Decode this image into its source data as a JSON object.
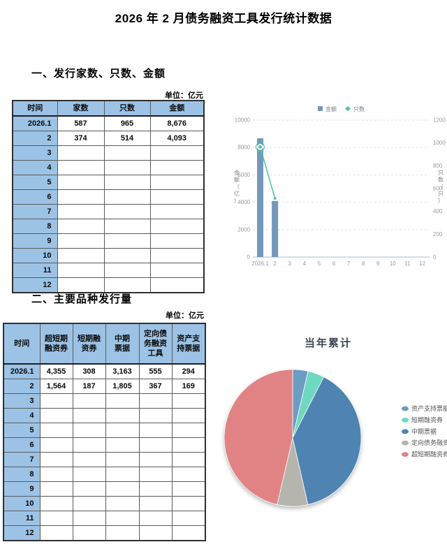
{
  "page_title": "2026 年 2 月债务融资工具发行统计数据",
  "section1": {
    "heading": "一、发行家数、只数、金额",
    "unit_label": "单位：亿元",
    "table": {
      "headers": [
        "时间",
        "家数",
        "只数",
        "金额"
      ],
      "rows": [
        [
          "2026.1",
          "587",
          "965",
          "8,676"
        ],
        [
          "2",
          "374",
          "514",
          "4,093"
        ],
        [
          "3",
          "",
          "",
          ""
        ],
        [
          "4",
          "",
          "",
          ""
        ],
        [
          "5",
          "",
          "",
          ""
        ],
        [
          "6",
          "",
          "",
          ""
        ],
        [
          "7",
          "",
          "",
          ""
        ],
        [
          "8",
          "",
          "",
          ""
        ],
        [
          "9",
          "",
          "",
          ""
        ],
        [
          "10",
          "",
          "",
          ""
        ],
        [
          "11",
          "",
          "",
          ""
        ],
        [
          "12",
          "",
          "",
          ""
        ]
      ]
    }
  },
  "section2": {
    "heading": "二、主要品种发行量",
    "unit_label": "单位：亿元",
    "table": {
      "headers": [
        "时间",
        "超短期\n融资券",
        "短期融\n资券",
        "中期\n票据",
        "定向债\n务融资\n工具",
        "资产支\n持票据"
      ],
      "rows": [
        [
          "2026.1",
          "4,355",
          "308",
          "3,163",
          "555",
          "294"
        ],
        [
          "2",
          "1,564",
          "187",
          "1,805",
          "367",
          "169"
        ],
        [
          "3",
          "",
          "",
          "",
          "",
          ""
        ],
        [
          "4",
          "",
          "",
          "",
          "",
          ""
        ],
        [
          "5",
          "",
          "",
          "",
          "",
          ""
        ],
        [
          "6",
          "",
          "",
          "",
          "",
          ""
        ],
        [
          "7",
          "",
          "",
          "",
          "",
          ""
        ],
        [
          "8",
          "",
          "",
          "",
          "",
          ""
        ],
        [
          "9",
          "",
          "",
          "",
          "",
          ""
        ],
        [
          "10",
          "",
          "",
          "",
          "",
          ""
        ],
        [
          "11",
          "",
          "",
          "",
          "",
          ""
        ],
        [
          "12",
          "",
          "",
          "",
          "",
          ""
        ]
      ]
    }
  },
  "chart_data": [
    {
      "type": "bar",
      "title": "",
      "categories": [
        "2026.1",
        "2",
        "3",
        "4",
        "5",
        "6",
        "7",
        "8",
        "9",
        "10",
        "11",
        "12"
      ],
      "series": [
        {
          "name": "金额",
          "type": "bar",
          "axis": "left",
          "color": "#7498b8",
          "values": [
            8676,
            4093,
            null,
            null,
            null,
            null,
            null,
            null,
            null,
            null,
            null,
            null
          ]
        },
        {
          "name": "只数",
          "type": "line",
          "axis": "right",
          "color": "#4ec3a2",
          "values": [
            965,
            514,
            null,
            null,
            null,
            null,
            null,
            null,
            null,
            null,
            null,
            null
          ]
        }
      ],
      "left_axis": {
        "name": "金额（亿）",
        "min": 0,
        "max": 10000,
        "step": 2000
      },
      "right_axis": {
        "name": "只数（只）",
        "min": 0,
        "max": 1200,
        "step": 200
      },
      "grid": "dashed",
      "legend_position": "top"
    },
    {
      "type": "pie",
      "title": "当年累计",
      "legend_position": "right",
      "slices": [
        {
          "label": "资产支持票据",
          "value": 463,
          "color": "#6d9cc3"
        },
        {
          "label": "短期融资券",
          "value": 495,
          "color": "#6fd8c0"
        },
        {
          "label": "中期票据",
          "value": 4968,
          "color": "#4f84b2"
        },
        {
          "label": "定向债务融资工具",
          "value": 922,
          "color": "#b5b5ae"
        },
        {
          "label": "超短期融资券",
          "value": 5919,
          "color": "#e18385"
        }
      ]
    }
  ],
  "colors": {
    "table_header_bg": "#9cc3e6",
    "bar": "#7498b8",
    "line": "#4ec3a2",
    "axis_text": "#999999",
    "legend_text": "#76838f"
  }
}
